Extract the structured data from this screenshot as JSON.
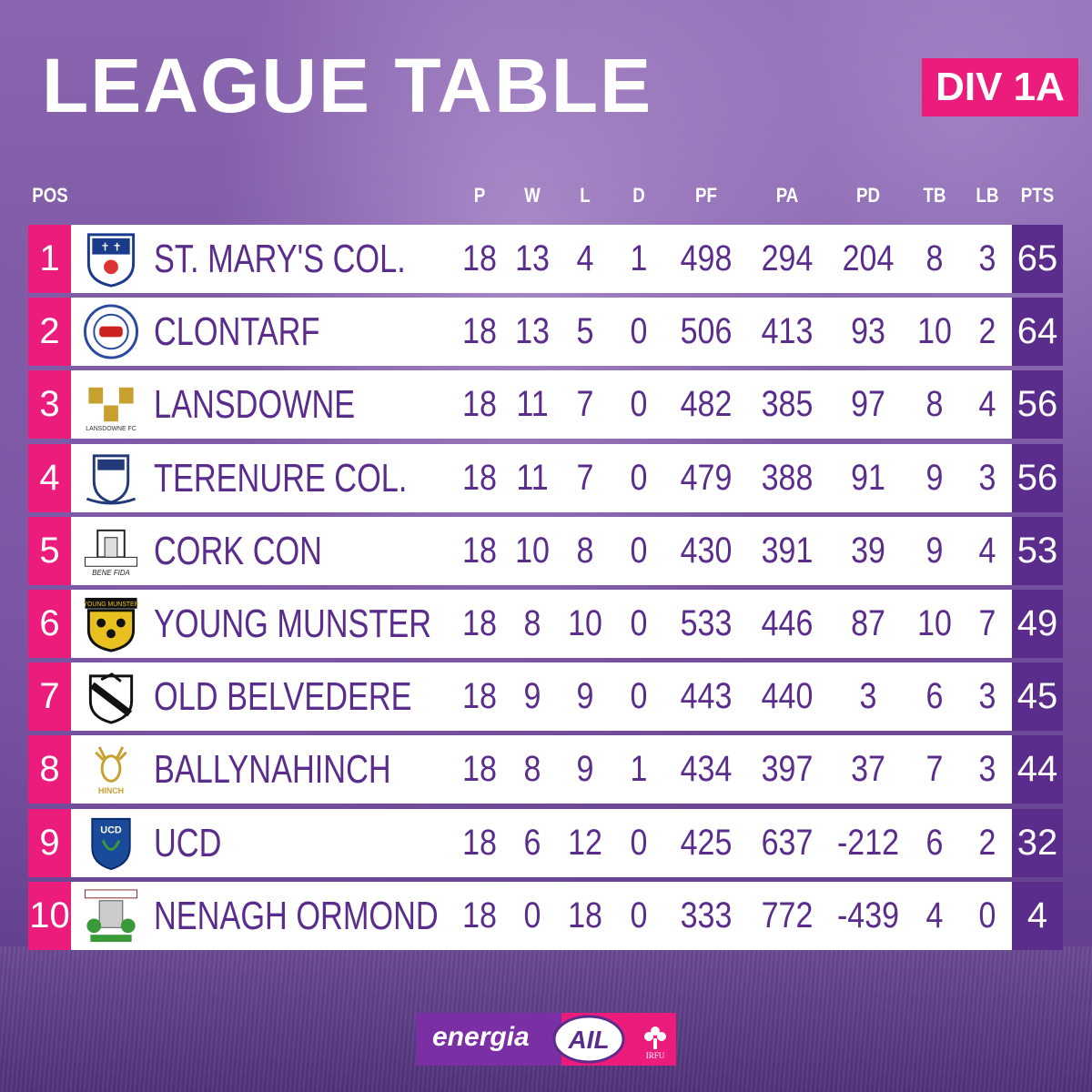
{
  "title": "LEAGUE TABLE",
  "division": "DIV 1A",
  "colors": {
    "pink": "#ec1c7c",
    "purple": "#5a2d8c",
    "background": "#7a56a3"
  },
  "headers": {
    "pos": "POS",
    "p": "P",
    "w": "W",
    "l": "L",
    "d": "D",
    "pf": "PF",
    "pa": "PA",
    "pd": "PD",
    "tb": "TB",
    "lb": "LB",
    "pts": "PTS"
  },
  "rows": [
    {
      "pos": "1",
      "team": "ST. MARY'S COL.",
      "logo": "st-marys-crest-icon",
      "p": "18",
      "w": "13",
      "l": "4",
      "d": "1",
      "pf": "498",
      "pa": "294",
      "pd": "204",
      "tb": "8",
      "lb": "3",
      "pts": "65"
    },
    {
      "pos": "2",
      "team": "CLONTARF",
      "logo": "clontarf-crest-icon",
      "p": "18",
      "w": "13",
      "l": "5",
      "d": "0",
      "pf": "506",
      "pa": "413",
      "pd": "93",
      "tb": "10",
      "lb": "2",
      "pts": "64"
    },
    {
      "pos": "3",
      "team": "LANSDOWNE",
      "logo": "lansdowne-crest-icon",
      "p": "18",
      "w": "11",
      "l": "7",
      "d": "0",
      "pf": "482",
      "pa": "385",
      "pd": "97",
      "tb": "8",
      "lb": "4",
      "pts": "56"
    },
    {
      "pos": "4",
      "team": "TERENURE COL.",
      "logo": "terenure-crest-icon",
      "p": "18",
      "w": "11",
      "l": "7",
      "d": "0",
      "pf": "479",
      "pa": "388",
      "pd": "91",
      "tb": "9",
      "lb": "3",
      "pts": "56"
    },
    {
      "pos": "5",
      "team": "CORK CON",
      "logo": "cork-con-crest-icon",
      "p": "18",
      "w": "10",
      "l": "8",
      "d": "0",
      "pf": "430",
      "pa": "391",
      "pd": "39",
      "tb": "9",
      "lb": "4",
      "pts": "53"
    },
    {
      "pos": "6",
      "team": "YOUNG MUNSTER",
      "logo": "young-munster-crest-icon",
      "p": "18",
      "w": "8",
      "l": "10",
      "d": "0",
      "pf": "533",
      "pa": "446",
      "pd": "87",
      "tb": "10",
      "lb": "7",
      "pts": "49"
    },
    {
      "pos": "7",
      "team": "OLD BELVEDERE",
      "logo": "old-belvedere-crest-icon",
      "p": "18",
      "w": "9",
      "l": "9",
      "d": "0",
      "pf": "443",
      "pa": "440",
      "pd": "3",
      "tb": "6",
      "lb": "3",
      "pts": "45"
    },
    {
      "pos": "8",
      "team": "BALLYNAHINCH",
      "logo": "ballynahinch-crest-icon",
      "p": "18",
      "w": "8",
      "l": "9",
      "d": "1",
      "pf": "434",
      "pa": "397",
      "pd": "37",
      "tb": "7",
      "lb": "3",
      "pts": "44"
    },
    {
      "pos": "9",
      "team": "UCD",
      "logo": "ucd-crest-icon",
      "p": "18",
      "w": "6",
      "l": "12",
      "d": "0",
      "pf": "425",
      "pa": "637",
      "pd": "-212",
      "tb": "6",
      "lb": "2",
      "pts": "32"
    },
    {
      "pos": "10",
      "team": "NENAGH ORMOND",
      "logo": "nenagh-ormond-crest-icon",
      "p": "18",
      "w": "0",
      "l": "18",
      "d": "0",
      "pf": "333",
      "pa": "772",
      "pd": "-439",
      "tb": "4",
      "lb": "0",
      "pts": "4"
    }
  ],
  "footer": {
    "sponsor": "energia",
    "league": "AIL",
    "union": "IRFU"
  }
}
